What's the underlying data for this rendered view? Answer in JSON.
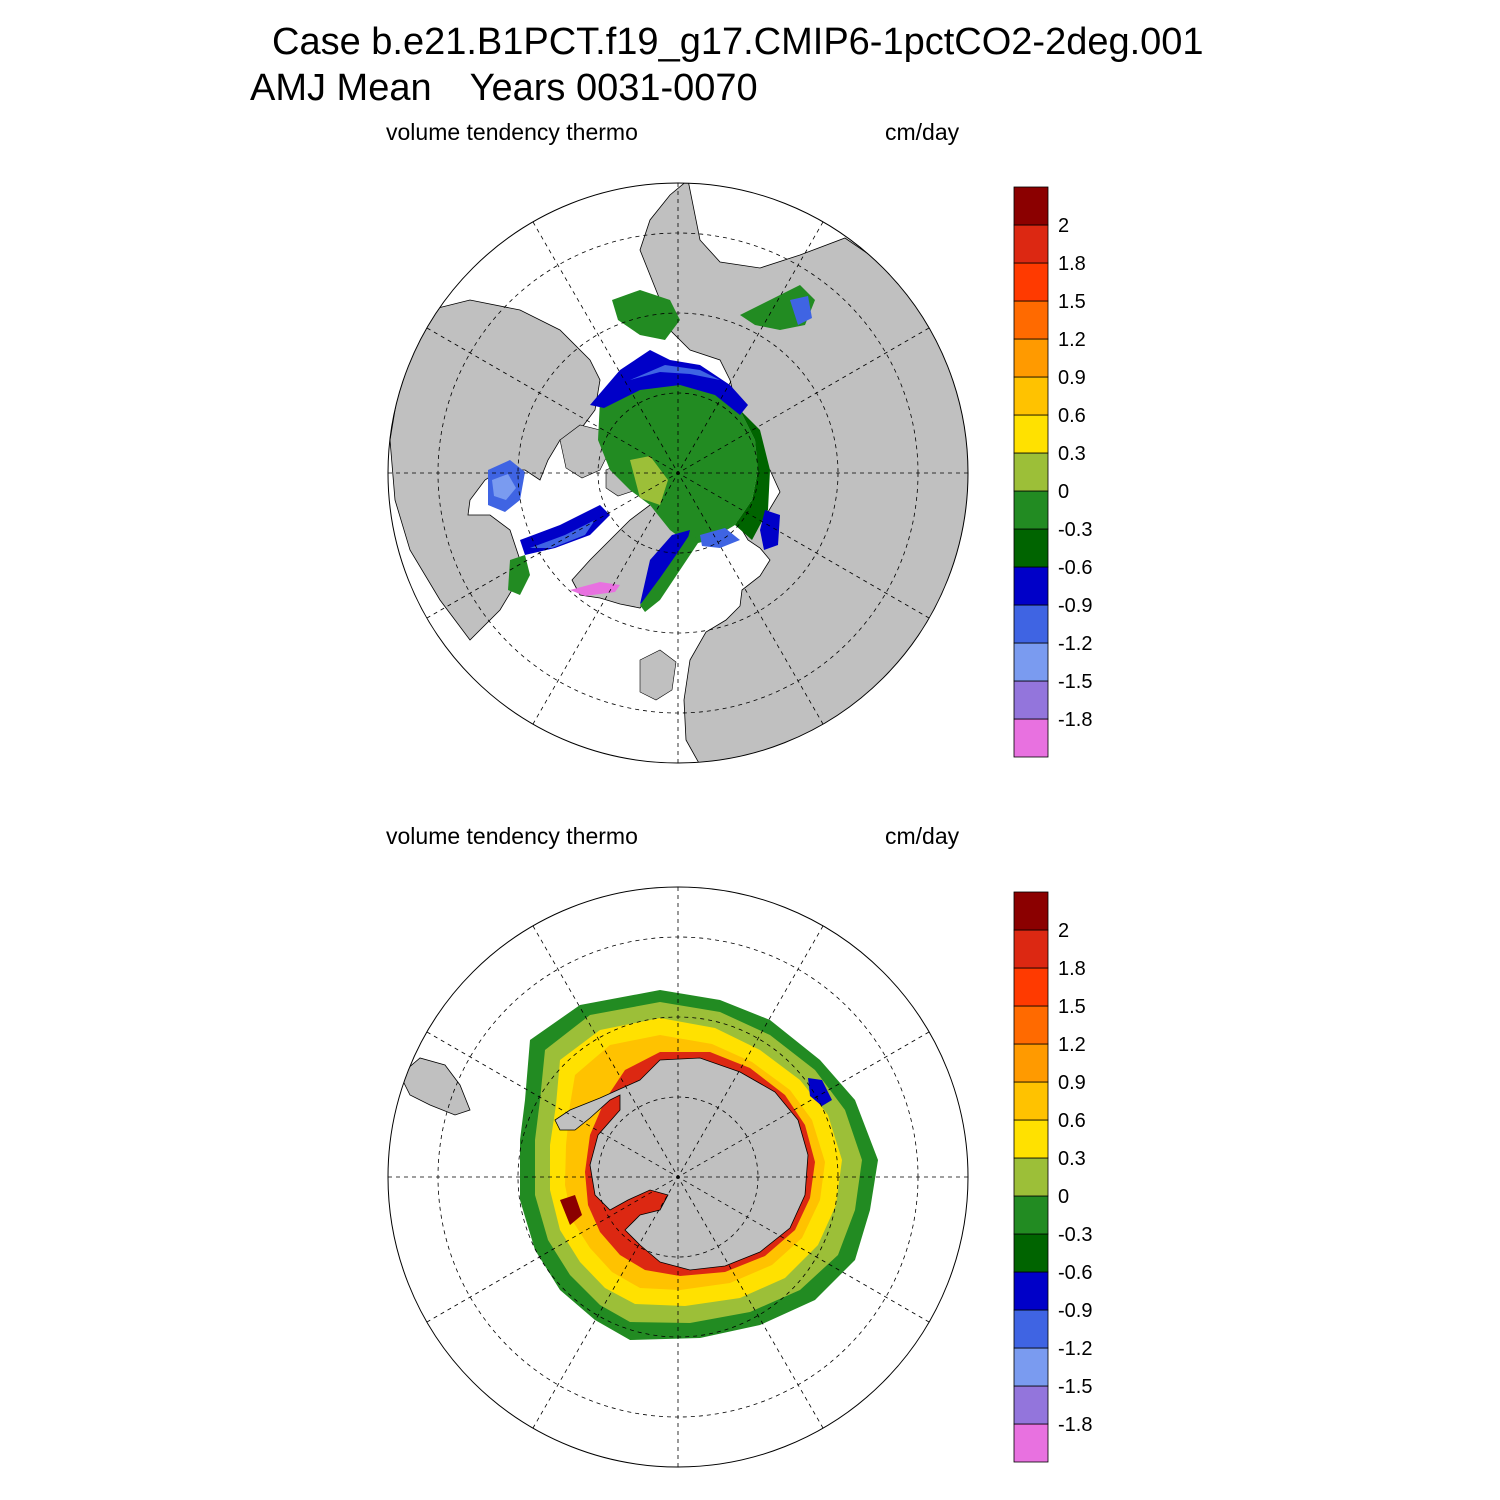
{
  "title": {
    "line1": "Case b.e21.B1PCT.f19_g17.CMIP6-1pctCO2-2deg.001",
    "line2_season": "AMJ Mean",
    "line2_years": "Years 0031-0070"
  },
  "panels": [
    {
      "id": "north",
      "left_label": "volume tendency thermo",
      "right_label": "cm/day"
    },
    {
      "id": "south",
      "left_label": "volume tendency thermo",
      "right_label": "cm/day"
    }
  ],
  "colorbar": {
    "colors": [
      "#e871e0",
      "#9375dc",
      "#7a9bf0",
      "#3f64e3",
      "#0000c8",
      "#006400",
      "#228b22",
      "#9cbf38",
      "#ffe100",
      "#ffc200",
      "#ff9a00",
      "#ff6a00",
      "#ff3a00",
      "#dc2812",
      "#8b0000"
    ],
    "labels": [
      "-1.8",
      "-1.5",
      "-1.2",
      "-0.9",
      "-0.6",
      "-0.3",
      "0",
      "0.3",
      "0.6",
      "0.9",
      "1.2",
      "1.5",
      "1.8",
      "2"
    ]
  },
  "colors": {
    "land": "#c0c0c0",
    "ocean": "#ffffff",
    "outline": "#000000"
  }
}
